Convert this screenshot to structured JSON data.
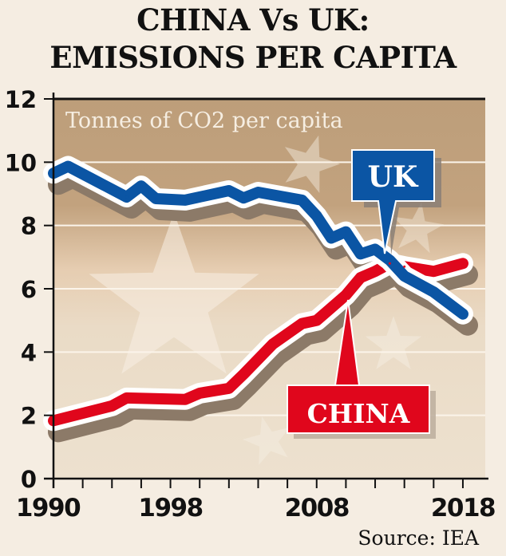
{
  "title": {
    "line1": "CHINA Vs UK:",
    "line2": "EMISSIONS PER CAPITA"
  },
  "source": "Source: IEA",
  "colors": {
    "background": "#f5ede2",
    "plot_top": "#bd9e7a",
    "plot_bottom": "#ebdfcc",
    "uk": "#0b55a4",
    "china": "#e0061c",
    "shadow": "#8c7a68",
    "outline": "#ffffff"
  },
  "chart_data": {
    "type": "line",
    "title": "CHINA Vs UK: EMISSIONS PER CAPITA",
    "subtitle": "Tonnes of CO2 per capita",
    "xlabel": "",
    "ylabel": "Tonnes of CO2 per capita",
    "xlim": [
      1990,
      2019
    ],
    "ylim": [
      0,
      12
    ],
    "x_ticks": [
      1990,
      1998,
      2008,
      2018
    ],
    "x_tick_labels": [
      "1990",
      "1998",
      "2008",
      "2018"
    ],
    "y_ticks": [
      0,
      2,
      4,
      6,
      8,
      10,
      12
    ],
    "y_tick_labels": [
      "0",
      "2",
      "4",
      "6",
      "8",
      "10",
      "12"
    ],
    "grid": true,
    "legend": "inline labels",
    "series": [
      {
        "name": "UK",
        "label": "UK",
        "x": [
          1990,
          1991,
          1995,
          1996,
          1997,
          1999,
          2002,
          2003,
          2004,
          2007,
          2008,
          2009,
          2010,
          2011,
          2012,
          2013,
          2014,
          2016,
          2018
        ],
        "values": [
          9.65,
          9.87,
          8.9,
          9.25,
          8.85,
          8.8,
          9.1,
          8.87,
          9.05,
          8.8,
          8.3,
          7.6,
          7.8,
          7.1,
          7.25,
          6.9,
          6.4,
          5.9,
          5.2
        ]
      },
      {
        "name": "China",
        "label": "CHINA",
        "x": [
          1990,
          1994,
          1995,
          1999,
          2000,
          2002,
          2003,
          2005,
          2007,
          2008,
          2009,
          2010,
          2011,
          2012,
          2013,
          2014,
          2016,
          2018
        ],
        "values": [
          1.83,
          2.3,
          2.55,
          2.5,
          2.7,
          2.85,
          3.3,
          4.25,
          4.9,
          5.0,
          5.4,
          5.8,
          6.35,
          6.55,
          6.8,
          6.7,
          6.55,
          6.8
        ]
      }
    ],
    "annotations": [
      {
        "text": "UK",
        "series": "UK",
        "at_year": 2012
      },
      {
        "text": "CHINA",
        "series": "China",
        "at_year": 2010
      }
    ]
  }
}
